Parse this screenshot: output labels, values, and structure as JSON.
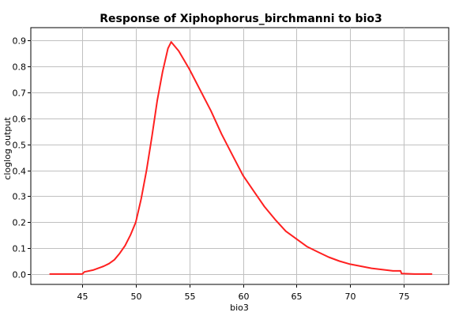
{
  "chart_data": {
    "type": "line",
    "title": "Response of Xiphophorus_birchmanni to bio3",
    "xlabel": "bio3",
    "ylabel": "cloglog output",
    "xlim": [
      40.2,
      79.2
    ],
    "ylim": [
      -0.04,
      0.95
    ],
    "xticks": [
      45,
      50,
      55,
      60,
      65,
      70,
      75
    ],
    "yticks": [
      0.0,
      0.1,
      0.2,
      0.3,
      0.4,
      0.5,
      0.6,
      0.7,
      0.8,
      0.9
    ],
    "grid": true,
    "line_color": "#ff2020",
    "series": [
      {
        "x": [
          42.0,
          45.0,
          45.2,
          46.0,
          47.0,
          47.5,
          48.0,
          48.5,
          49.0,
          49.5,
          50.0,
          50.5,
          51.0,
          51.5,
          52.0,
          52.5,
          53.0,
          53.3,
          54.0,
          55.0,
          56.0,
          57.0,
          58.0,
          59.0,
          60.0,
          61.0,
          62.0,
          63.0,
          64.0,
          65.0,
          66.0,
          67.0,
          68.0,
          69.0,
          70.0,
          71.0,
          72.0,
          73.0,
          74.0,
          74.7,
          74.8,
          76.0,
          77.6
        ],
        "y": [
          0.0,
          0.0,
          0.008,
          0.015,
          0.03,
          0.04,
          0.055,
          0.08,
          0.11,
          0.15,
          0.2,
          0.29,
          0.4,
          0.53,
          0.67,
          0.78,
          0.87,
          0.895,
          0.86,
          0.79,
          0.71,
          0.63,
          0.54,
          0.46,
          0.38,
          0.32,
          0.26,
          0.21,
          0.165,
          0.135,
          0.105,
          0.085,
          0.065,
          0.05,
          0.038,
          0.03,
          0.022,
          0.017,
          0.012,
          0.012,
          0.002,
          0.0,
          0.0
        ]
      }
    ]
  }
}
